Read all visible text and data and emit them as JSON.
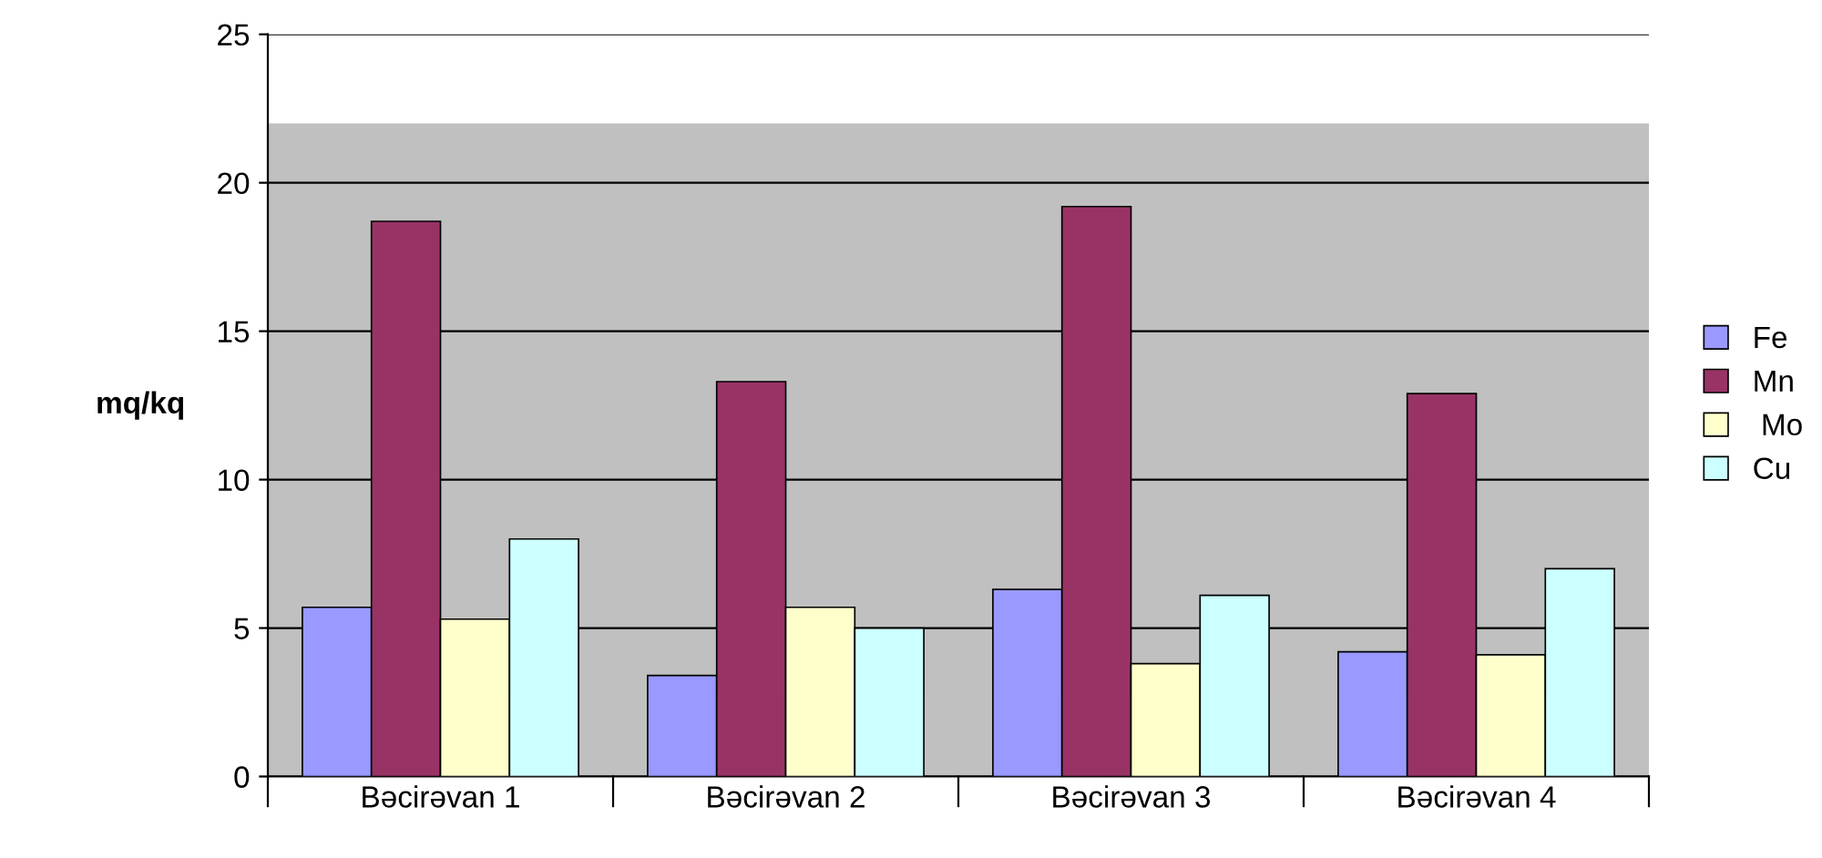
{
  "chart_data": {
    "type": "bar",
    "ylabel": "mq/kq",
    "categories": [
      "Bəcirəvan 1",
      "Bəcirəvan 2",
      "Bəcirəvan 3",
      "Bəcirəvan 4"
    ],
    "series": [
      {
        "name": "Fe",
        "color": "#9999ff",
        "values": [
          5.7,
          3.4,
          6.3,
          4.2
        ]
      },
      {
        "name": "Mn",
        "color": "#993366",
        "values": [
          18.7,
          13.3,
          19.2,
          12.9
        ]
      },
      {
        "name": " Mo",
        "color": "#ffffcc",
        "values": [
          5.3,
          5.7,
          3.8,
          4.1
        ]
      },
      {
        "name": "Cu",
        "color": "#ccffff",
        "values": [
          8.0,
          5.0,
          6.1,
          7.0
        ]
      }
    ],
    "ylim": [
      0,
      25
    ],
    "yticks": [
      0,
      5,
      10,
      15,
      20,
      25
    ],
    "grid": "y",
    "legend": "right",
    "bands": [
      {
        "axis": "y",
        "from": 0,
        "to": 22,
        "color": "#c0c0c0"
      }
    ]
  }
}
